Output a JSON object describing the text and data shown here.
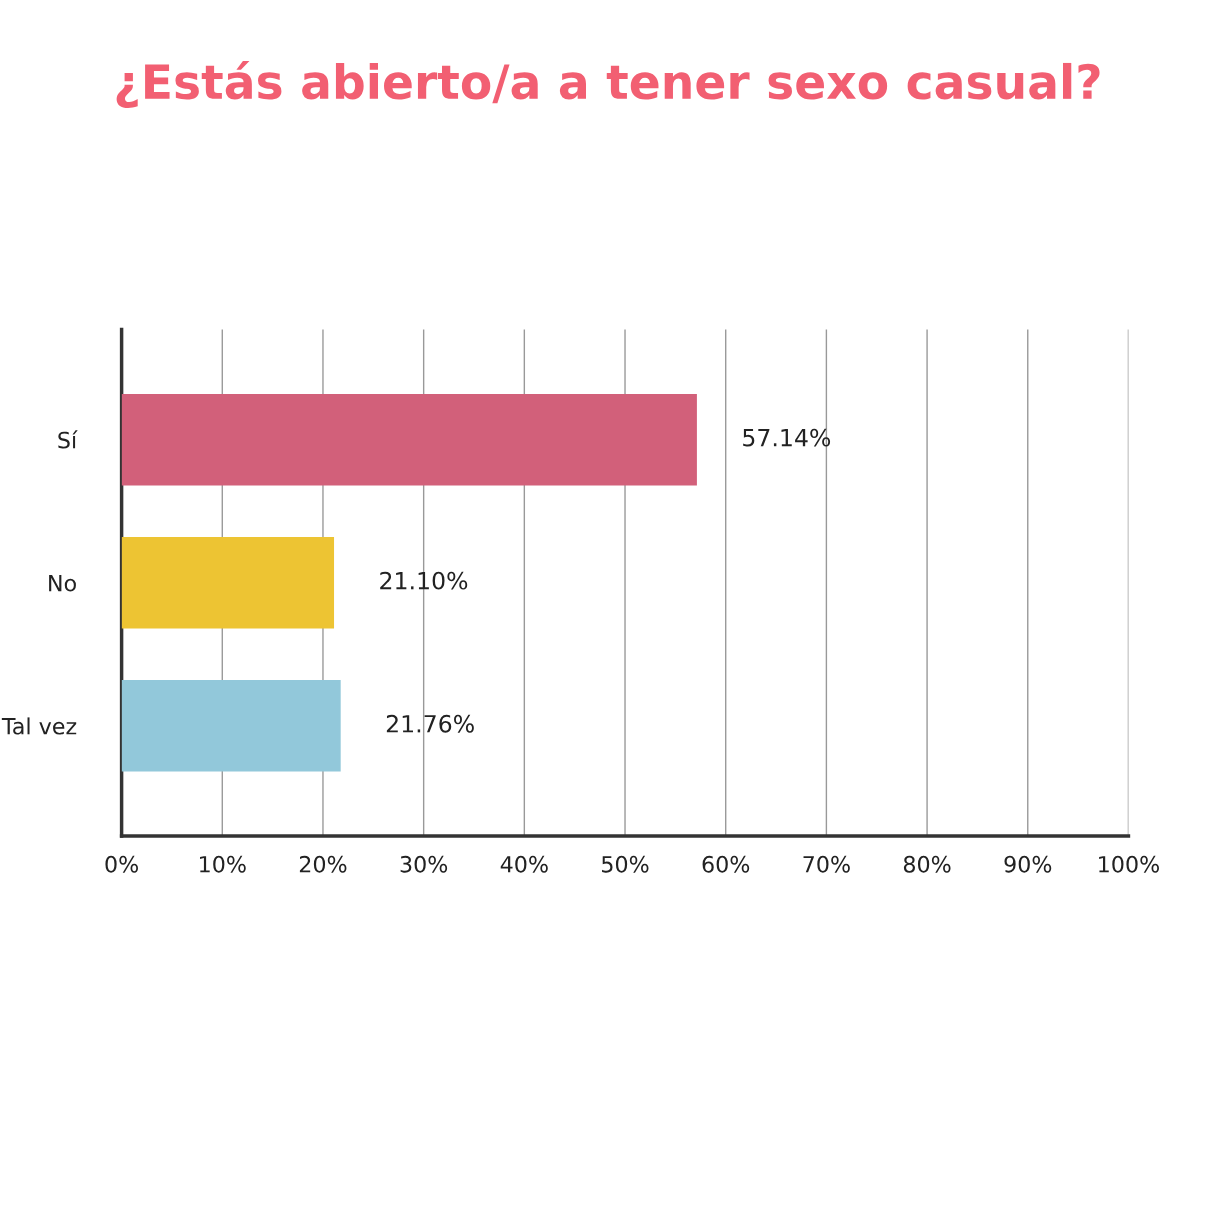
{
  "chart_data": {
    "type": "bar",
    "orientation": "horizontal",
    "title": "¿Estás abierto/a a tener sexo casual?",
    "categories": [
      "Sí",
      "No",
      "Tal vez"
    ],
    "values": [
      57.14,
      21.1,
      21.76
    ],
    "colors": [
      "#d2607a",
      "#edc433",
      "#92c8da"
    ],
    "value_labels": [
      "57.14%",
      "21.10%",
      "21.76%"
    ],
    "xlim": [
      0,
      100
    ],
    "xticks": [
      {
        "value": 0,
        "label": "0%"
      },
      {
        "value": 10,
        "label": "10%"
      },
      {
        "value": 20,
        "label": "20%"
      },
      {
        "value": 30,
        "label": "30%"
      },
      {
        "value": 40,
        "label": "40%"
      },
      {
        "value": 50,
        "label": "50%"
      },
      {
        "value": 60,
        "label": "60%"
      },
      {
        "value": 70,
        "label": "70%"
      },
      {
        "value": 80,
        "label": "80%"
      },
      {
        "value": 90,
        "label": "90%"
      },
      {
        "value": 100,
        "label": "100%"
      }
    ],
    "grid": "x",
    "legend": false
  }
}
